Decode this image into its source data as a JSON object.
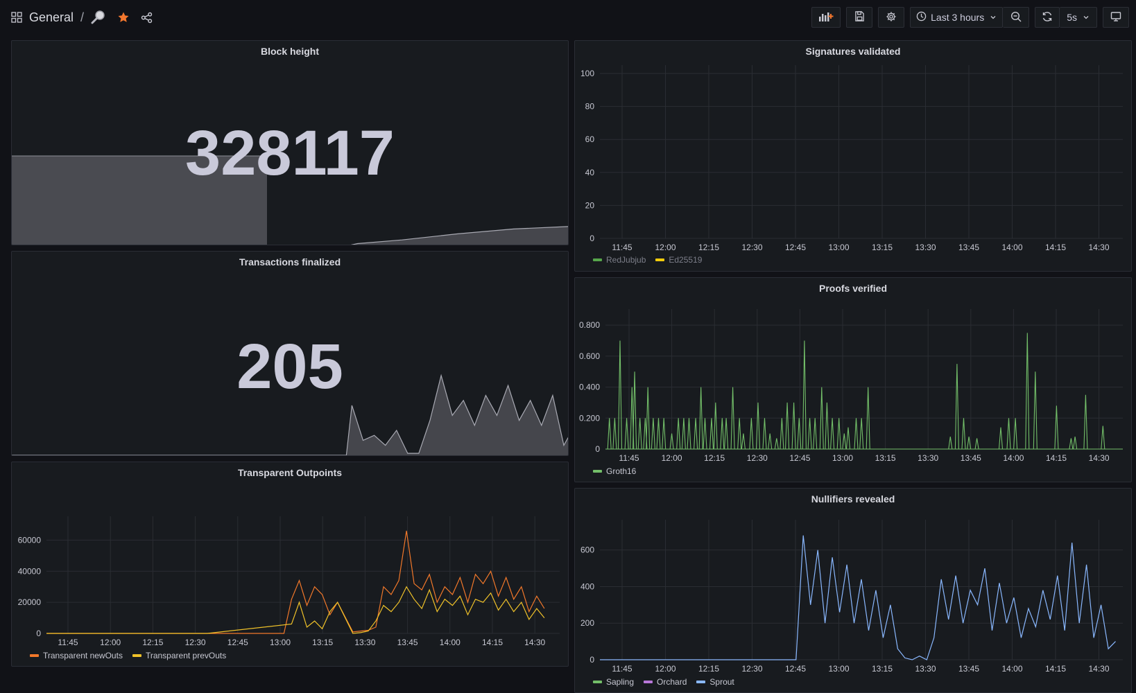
{
  "header": {
    "breadcrumb_folder": "General",
    "breadcrumb_sep": "/",
    "time_range": "Last 3 hours",
    "refresh_interval": "5s",
    "icons": {
      "dashboards": "grid-icon",
      "title_icon": "magnifier-icon",
      "star": "star-icon",
      "share": "share-icon",
      "add_panel": "add-panel-icon",
      "save": "save-icon",
      "settings": "gear-icon",
      "clock": "clock-icon",
      "zoom_out": "zoom-out-icon",
      "refresh": "refresh-icon",
      "tv": "tv-mode-icon"
    },
    "star_color": "#f4772e"
  },
  "panels": {
    "block_height": {
      "title": "Block height",
      "value": "328117"
    },
    "transactions_finalized": {
      "title": "Transactions finalized",
      "value": "205"
    },
    "transparent_outpoints": {
      "title": "Transparent Outpoints",
      "legend": [
        {
          "name": "Transparent newOuts",
          "color": "#f2782a"
        },
        {
          "name": "Transparent prevOuts",
          "color": "#f0c229"
        }
      ]
    },
    "signatures_validated": {
      "title": "Signatures validated",
      "legend": [
        {
          "name": "RedJubjub",
          "color": "#56a64b"
        },
        {
          "name": "Ed25519",
          "color": "#f2cc0c"
        }
      ]
    },
    "proofs_verified": {
      "title": "Proofs verified",
      "legend": [
        {
          "name": "Groth16",
          "color": "#73bf69"
        }
      ]
    },
    "nullifiers_revealed": {
      "title": "Nullifiers revealed",
      "legend": [
        {
          "name": "Sapling",
          "color": "#73bf69"
        },
        {
          "name": "Orchard",
          "color": "#b877d9"
        },
        {
          "name": "Sprout",
          "color": "#8ab8ff"
        }
      ]
    }
  },
  "chart_data": [
    {
      "type": "line",
      "title": "Transparent Outpoints",
      "x_ticks": [
        "11:45",
        "12:00",
        "12:15",
        "12:30",
        "12:45",
        "13:00",
        "13:15",
        "13:30",
        "13:45",
        "14:00",
        "14:15",
        "14:30"
      ],
      "y_ticks": [
        "0",
        "20000",
        "40000",
        "60000"
      ],
      "ylim": [
        0,
        70000
      ],
      "series": [
        {
          "name": "Transparent newOuts",
          "color": "#f2782a",
          "points": [
            [
              0,
              0
            ],
            [
              30,
              0
            ],
            [
              31,
              0
            ],
            [
              32,
              22000
            ],
            [
              33,
              34000
            ],
            [
              34,
              18000
            ],
            [
              35,
              30000
            ],
            [
              36,
              25000
            ],
            [
              37,
              12000
            ],
            [
              38,
              20000
            ],
            [
              40,
              1000
            ],
            [
              41,
              1500
            ],
            [
              42,
              2000
            ],
            [
              43,
              4000
            ],
            [
              44,
              30000
            ],
            [
              45,
              25000
            ],
            [
              46,
              34000
            ],
            [
              47,
              66000
            ],
            [
              48,
              32000
            ],
            [
              49,
              28000
            ],
            [
              50,
              38000
            ],
            [
              51,
              20000
            ],
            [
              52,
              30000
            ],
            [
              53,
              25000
            ],
            [
              54,
              36000
            ],
            [
              55,
              20000
            ],
            [
              56,
              38000
            ],
            [
              57,
              32000
            ],
            [
              58,
              40000
            ],
            [
              59,
              24000
            ],
            [
              60,
              36000
            ],
            [
              61,
              22000
            ],
            [
              62,
              30000
            ],
            [
              63,
              14000
            ],
            [
              64,
              24000
            ],
            [
              65,
              16000
            ]
          ]
        },
        {
          "name": "Transparent prevOuts",
          "color": "#f0c229",
          "points": [
            [
              0,
              0
            ],
            [
              20,
              0
            ],
            [
              21,
              0
            ],
            [
              32,
              6000
            ],
            [
              33,
              20000
            ],
            [
              34,
              4000
            ],
            [
              35,
              8000
            ],
            [
              36,
              3000
            ],
            [
              37,
              14000
            ],
            [
              38,
              20000
            ],
            [
              40,
              0
            ],
            [
              41,
              500
            ],
            [
              42,
              1500
            ],
            [
              43,
              8000
            ],
            [
              44,
              18000
            ],
            [
              45,
              14000
            ],
            [
              46,
              20000
            ],
            [
              47,
              30000
            ],
            [
              48,
              22000
            ],
            [
              49,
              16000
            ],
            [
              50,
              28000
            ],
            [
              51,
              14000
            ],
            [
              52,
              22000
            ],
            [
              53,
              18000
            ],
            [
              54,
              24000
            ],
            [
              55,
              12000
            ],
            [
              56,
              22000
            ],
            [
              57,
              20000
            ],
            [
              58,
              26000
            ],
            [
              59,
              15000
            ],
            [
              60,
              22000
            ],
            [
              61,
              14000
            ],
            [
              62,
              20000
            ],
            [
              63,
              9000
            ],
            [
              64,
              16000
            ],
            [
              65,
              10000
            ]
          ]
        }
      ]
    },
    {
      "type": "line",
      "title": "Signatures validated",
      "x_ticks": [
        "11:45",
        "12:00",
        "12:15",
        "12:30",
        "12:45",
        "13:00",
        "13:15",
        "13:30",
        "13:45",
        "14:00",
        "14:15",
        "14:30"
      ],
      "y_ticks": [
        "0",
        "20",
        "40",
        "60",
        "80",
        "100"
      ],
      "ylim": [
        0,
        100
      ],
      "series": [
        {
          "name": "RedJubjub",
          "color": "#56a64b",
          "points": []
        },
        {
          "name": "Ed25519",
          "color": "#f2cc0c",
          "points": []
        }
      ]
    },
    {
      "type": "line",
      "title": "Proofs verified",
      "x_ticks": [
        "11:45",
        "12:00",
        "12:15",
        "12:30",
        "12:45",
        "13:00",
        "13:15",
        "13:30",
        "13:45",
        "14:00",
        "14:15",
        "14:30"
      ],
      "y_ticks": [
        "0",
        "0.200",
        "0.400",
        "0.600",
        "0.800"
      ],
      "ylim": [
        0,
        0.85
      ],
      "series": [
        {
          "name": "Groth16",
          "color": "#73bf69",
          "spikes": [
            [
              0.3,
              0.2
            ],
            [
              0.7,
              0.2
            ],
            [
              1.1,
              0.7
            ],
            [
              1.6,
              0.2
            ],
            [
              2.0,
              0.4
            ],
            [
              2.2,
              0.5
            ],
            [
              2.6,
              0.2
            ],
            [
              3.0,
              0.2
            ],
            [
              3.2,
              0.4
            ],
            [
              3.6,
              0.2
            ],
            [
              4.0,
              0.2
            ],
            [
              4.4,
              0.2
            ],
            [
              5.0,
              0.1
            ],
            [
              5.5,
              0.2
            ],
            [
              5.9,
              0.2
            ],
            [
              6.3,
              0.2
            ],
            [
              6.8,
              0.2
            ],
            [
              7.2,
              0.4
            ],
            [
              7.5,
              0.2
            ],
            [
              8.0,
              0.2
            ],
            [
              8.3,
              0.3
            ],
            [
              8.8,
              0.2
            ],
            [
              9.1,
              0.2
            ],
            [
              9.6,
              0.4
            ],
            [
              10.1,
              0.2
            ],
            [
              10.4,
              0.1
            ],
            [
              11.0,
              0.2
            ],
            [
              11.5,
              0.3
            ],
            [
              12.0,
              0.2
            ],
            [
              12.4,
              0.1
            ],
            [
              12.9,
              0.07
            ],
            [
              13.3,
              0.2
            ],
            [
              13.7,
              0.3
            ],
            [
              14.2,
              0.3
            ],
            [
              14.6,
              0.2
            ],
            [
              15.0,
              0.7
            ],
            [
              15.4,
              0.2
            ],
            [
              15.8,
              0.2
            ],
            [
              16.3,
              0.4
            ],
            [
              16.7,
              0.3
            ],
            [
              17.1,
              0.2
            ],
            [
              17.6,
              0.2
            ],
            [
              18.0,
              0.1
            ],
            [
              18.3,
              0.14
            ],
            [
              18.9,
              0.2
            ],
            [
              19.3,
              0.2
            ],
            [
              19.8,
              0.4
            ],
            [
              26.0,
              0.08
            ],
            [
              26.5,
              0.55
            ],
            [
              27.0,
              0.2
            ],
            [
              27.4,
              0.08
            ],
            [
              28.0,
              0.07
            ],
            [
              29.8,
              0.14
            ],
            [
              30.4,
              0.2
            ],
            [
              30.9,
              0.2
            ],
            [
              31.8,
              0.75
            ],
            [
              32.4,
              0.5
            ],
            [
              34.0,
              0.28
            ],
            [
              35.1,
              0.07
            ],
            [
              35.4,
              0.08
            ],
            [
              36.2,
              0.35
            ],
            [
              37.5,
              0.15
            ]
          ]
        }
      ]
    },
    {
      "type": "line",
      "title": "Nullifiers revealed",
      "x_ticks": [
        "11:45",
        "12:00",
        "12:15",
        "12:30",
        "12:45",
        "13:00",
        "13:15",
        "13:30",
        "13:45",
        "14:00",
        "14:15",
        "14:30"
      ],
      "y_ticks": [
        "0",
        "200",
        "400",
        "600"
      ],
      "ylim": [
        0,
        720
      ],
      "series": [
        {
          "name": "Sapling",
          "color": "#73bf69",
          "points": []
        },
        {
          "name": "Orchard",
          "color": "#b877d9",
          "points": []
        },
        {
          "name": "Sprout",
          "color": "#8ab8ff",
          "points": [
            [
              0,
              0
            ],
            [
              26,
              0
            ],
            [
              27,
              0
            ],
            [
              28,
              680
            ],
            [
              29,
              300
            ],
            [
              30,
              600
            ],
            [
              31,
              200
            ],
            [
              32,
              560
            ],
            [
              33,
              260
            ],
            [
              34,
              520
            ],
            [
              35,
              200
            ],
            [
              36,
              440
            ],
            [
              37,
              160
            ],
            [
              38,
              380
            ],
            [
              39,
              120
            ],
            [
              40,
              300
            ],
            [
              41,
              60
            ],
            [
              42,
              10
            ],
            [
              43,
              0
            ],
            [
              44,
              20
            ],
            [
              45,
              0
            ],
            [
              46,
              120
            ],
            [
              47,
              440
            ],
            [
              48,
              220
            ],
            [
              49,
              460
            ],
            [
              50,
              200
            ],
            [
              51,
              380
            ],
            [
              52,
              300
            ],
            [
              53,
              500
            ],
            [
              54,
              160
            ],
            [
              55,
              420
            ],
            [
              56,
              200
            ],
            [
              57,
              340
            ],
            [
              58,
              120
            ],
            [
              59,
              280
            ],
            [
              60,
              180
            ],
            [
              61,
              380
            ],
            [
              62,
              220
            ],
            [
              63,
              460
            ],
            [
              64,
              160
            ],
            [
              65,
              640
            ],
            [
              66,
              200
            ],
            [
              67,
              520
            ],
            [
              68,
              120
            ],
            [
              69,
              300
            ],
            [
              70,
              60
            ],
            [
              71,
              100
            ]
          ]
        }
      ]
    },
    {
      "type": "area",
      "title": "Block height",
      "series": [
        {
          "name": "",
          "points": [
            [
              0,
              0
            ],
            [
              0.6,
              0
            ],
            [
              0.62,
              0.02
            ],
            [
              0.7,
              0.05
            ],
            [
              0.8,
              0.1
            ],
            [
              0.9,
              0.14
            ],
            [
              1.0,
              0.16
            ]
          ]
        }
      ]
    },
    {
      "type": "area",
      "title": "Transactions finalized",
      "series": [
        {
          "name": "",
          "points": [
            [
              0,
              0
            ],
            [
              0.6,
              0
            ],
            [
              0.61,
              0.5
            ],
            [
              0.63,
              0.15
            ],
            [
              0.65,
              0.2
            ],
            [
              0.67,
              0.1
            ],
            [
              0.69,
              0.25
            ],
            [
              0.71,
              0.02
            ],
            [
              0.73,
              0.02
            ],
            [
              0.75,
              0.35
            ],
            [
              0.77,
              0.8
            ],
            [
              0.79,
              0.4
            ],
            [
              0.81,
              0.55
            ],
            [
              0.83,
              0.3
            ],
            [
              0.85,
              0.6
            ],
            [
              0.87,
              0.4
            ],
            [
              0.89,
              0.7
            ],
            [
              0.91,
              0.35
            ],
            [
              0.93,
              0.55
            ],
            [
              0.95,
              0.3
            ],
            [
              0.97,
              0.6
            ],
            [
              0.99,
              0.1
            ],
            [
              1.0,
              0.2
            ]
          ]
        }
      ]
    }
  ]
}
